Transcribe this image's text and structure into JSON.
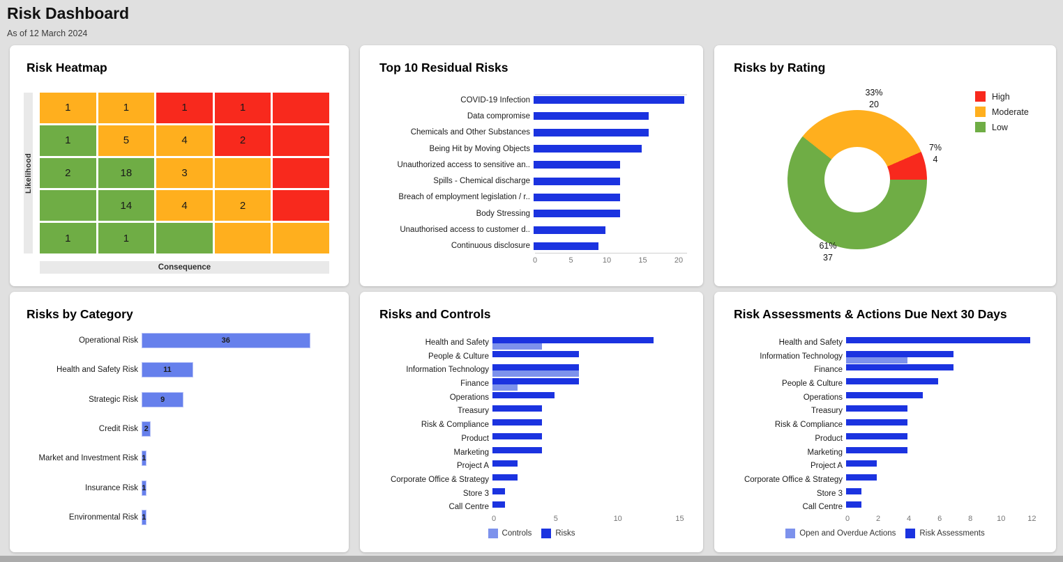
{
  "header": {
    "title": "Risk Dashboard",
    "subtitle": "As of 12 March 2024"
  },
  "colors": {
    "high": "#F8291D",
    "moderate": "#FFAF1E",
    "low": "#6FAD45",
    "dark_blue": "#1B33E0",
    "light_blue": "#7D92EC",
    "periwinkle": "#6680EC",
    "periwinkle_border": "#B7C2F6"
  },
  "chart_data": [
    {
      "type": "heatmap",
      "title": "Risk Heatmap",
      "xlabel": "Consequence",
      "ylabel": "Likelihood",
      "cell_colors": [
        [
          "moderate",
          "moderate",
          "high",
          "high",
          "high"
        ],
        [
          "low",
          "moderate",
          "moderate",
          "high",
          "high"
        ],
        [
          "low",
          "low",
          "moderate",
          "moderate",
          "high"
        ],
        [
          "low",
          "low",
          "moderate",
          "moderate",
          "high"
        ],
        [
          "low",
          "low",
          "low",
          "moderate",
          "moderate"
        ]
      ],
      "values": [
        [
          1,
          1,
          1,
          1,
          null
        ],
        [
          1,
          5,
          4,
          2,
          null
        ],
        [
          2,
          18,
          3,
          null,
          null
        ],
        [
          null,
          14,
          4,
          2,
          null
        ],
        [
          1,
          1,
          null,
          null,
          null
        ]
      ]
    },
    {
      "type": "bar",
      "orientation": "horizontal",
      "title": "Top 10 Residual Risks",
      "categories": [
        "COVID-19 Infection",
        "Data compromise",
        "Chemicals and Other Substances",
        "Being Hit by Moving Objects",
        "Unauthorized access to sensitive an..",
        "Spills - Chemical discharge",
        "Breach of employment legislation / r..",
        "Body Stressing",
        "Unauthorised access to customer d..",
        "Continuous disclosure"
      ],
      "values": [
        21,
        16,
        16,
        15,
        12,
        12,
        12,
        12,
        10,
        9
      ],
      "xticks": [
        "0",
        "5",
        "10",
        "15",
        "20"
      ],
      "xlim": [
        0,
        21
      ],
      "bar_color_key": "dark_blue",
      "grid": true,
      "legend_position": "none"
    },
    {
      "type": "pie",
      "donut": true,
      "title": "Risks by Rating",
      "labels": [
        "High",
        "Moderate",
        "Low"
      ],
      "values": [
        4,
        20,
        37
      ],
      "pct_labels": [
        "7%",
        "33%",
        "61%"
      ],
      "color_keys": [
        "high",
        "moderate",
        "low"
      ],
      "legend_position": "right"
    },
    {
      "type": "bar",
      "orientation": "horizontal",
      "title": "Risks by Category",
      "categories": [
        "Operational Risk",
        "Health and Safety Risk",
        "Strategic Risk",
        "Credit Risk",
        "Market and Investment Risk",
        "Insurance Risk",
        "Environmental Risk"
      ],
      "values": [
        36,
        11,
        9,
        2,
        1,
        1,
        1
      ],
      "show_value_labels": true,
      "bar_color_key": "periwinkle",
      "legend_position": "none"
    },
    {
      "type": "bar",
      "orientation": "horizontal",
      "title": "Risks and Controls",
      "categories": [
        "Health and Safety",
        "People & Culture",
        "Information Technology",
        "Finance",
        "Operations",
        "Treasury",
        "Risk & Compliance",
        "Product",
        "Marketing",
        "Project A",
        "Corporate Office & Strategy",
        "Store 3",
        "Call Centre"
      ],
      "series": [
        {
          "name": "Controls",
          "color_key": "light_blue",
          "values": [
            4,
            0,
            7,
            2,
            0,
            0,
            0,
            0,
            0,
            0,
            0,
            0,
            0
          ]
        },
        {
          "name": "Risks",
          "color_key": "dark_blue",
          "values": [
            13,
            7,
            7,
            7,
            5,
            4,
            4,
            4,
            4,
            2,
            2,
            1,
            1
          ]
        }
      ],
      "xticks": [
        "0",
        "5",
        "10",
        "15"
      ],
      "xlim": [
        0,
        15.5
      ],
      "legend_position": "bottom"
    },
    {
      "type": "bar",
      "orientation": "horizontal",
      "title": "Risk Assessments & Actions Due Next 30 Days",
      "categories": [
        "Health and Safety",
        "Information Technology",
        "Finance",
        "People & Culture",
        "Operations",
        "Treasury",
        "Risk & Compliance",
        "Product",
        "Marketing",
        "Project A",
        "Corporate Office & Strategy",
        "Store 3",
        "Call Centre"
      ],
      "series": [
        {
          "name": "Open and Overdue Actions",
          "color_key": "light_blue",
          "values": [
            0,
            4,
            0,
            0,
            0,
            0,
            0,
            0,
            0,
            0,
            0,
            0,
            0
          ]
        },
        {
          "name": "Risk Assessments",
          "color_key": "dark_blue",
          "values": [
            12,
            7,
            7,
            6,
            5,
            4,
            4,
            4,
            4,
            2,
            2,
            1,
            1
          ]
        }
      ],
      "xticks": [
        "0",
        "2",
        "4",
        "6",
        "8",
        "10",
        "12"
      ],
      "xlim": [
        0,
        12.4
      ],
      "legend_position": "bottom"
    }
  ]
}
